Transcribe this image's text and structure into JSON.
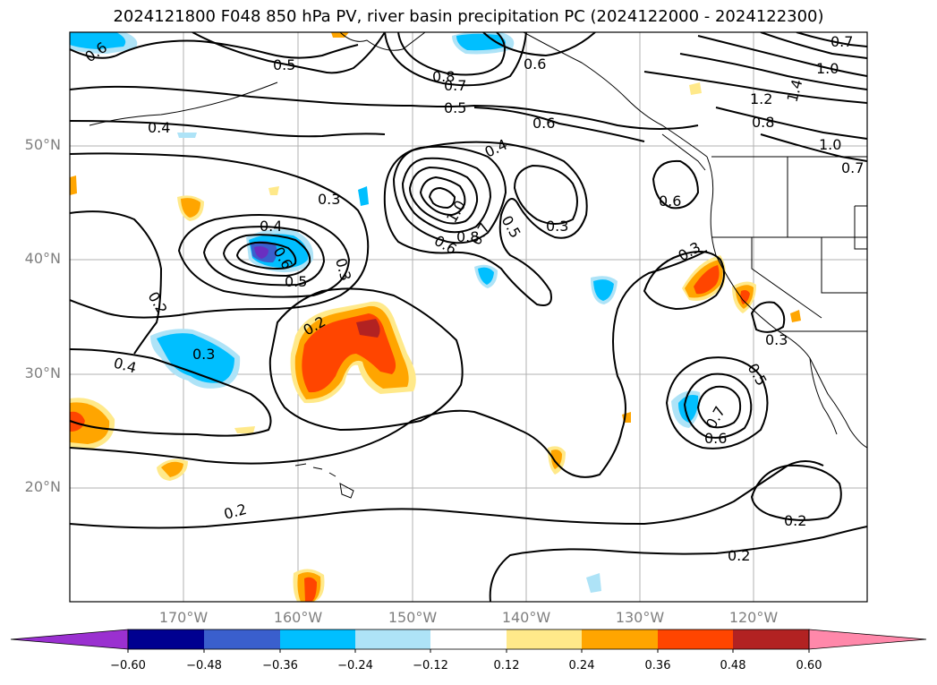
{
  "title": "2024121800 F048 850 hPa PV, river basin precipitation PC (2024122000 - 2024122300)",
  "lat_labels": [
    "50°N",
    "40°N",
    "30°N",
    "20°N"
  ],
  "lon_labels": [
    "170°W",
    "160°W",
    "150°W",
    "140°W",
    "130°W",
    "120°W"
  ],
  "colorbar": {
    "ticks": [
      "−0.60",
      "−0.48",
      "−0.36",
      "−0.24",
      "−0.12",
      "0.12",
      "0.24",
      "0.36",
      "0.48",
      "0.60"
    ],
    "colors": [
      "#9a30d0",
      "#000090",
      "#3a5fcd",
      "#00bfff",
      "#aee3f7",
      "#ffffff",
      "#ffe98a",
      "#ffa500",
      "#ff4500",
      "#b22222",
      "#ff88aa"
    ]
  },
  "contour_labels": [
    "0.6",
    "0.5",
    "0.8",
    "0.7",
    "0.6",
    "0.5",
    "0.6",
    "0.4",
    "0.4",
    "0.3",
    "0.3",
    "0.4",
    "0.6",
    "0.5",
    "1.0",
    "0.8",
    "0.7",
    "0.5",
    "0.6",
    "0.2",
    "0.3",
    "0.4",
    "0.2",
    "0.3",
    "0.6",
    "0.3",
    "0.5",
    "0.6",
    "0.7",
    "0.3",
    "0.2",
    "0.2",
    "0.2",
    "1.2",
    "0.8",
    "1.0",
    "0.7",
    "1.4",
    "1.0",
    "0.7"
  ],
  "fill_colors": {
    "blue": "#00bfff",
    "lightblue": "#aee3f7",
    "navy": "#3a5fcd",
    "purple": "#6a2fc0",
    "yellow": "#ffe98a",
    "orange": "#ffa500",
    "red": "#ff4500",
    "darkred": "#b22222"
  }
}
